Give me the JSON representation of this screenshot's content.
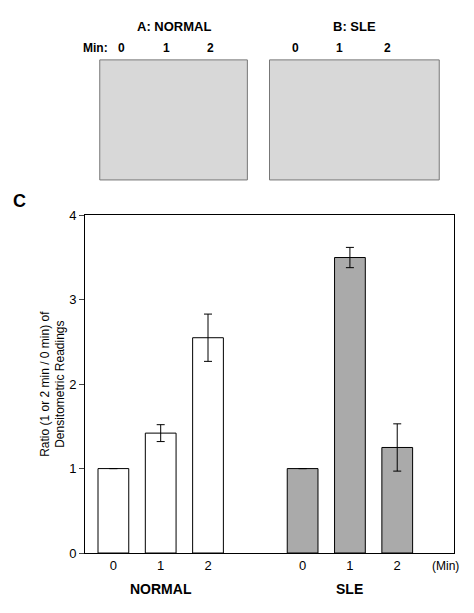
{
  "chart_data": {
    "type": "bar",
    "categories": [
      "0",
      "1",
      "2",
      null,
      "0",
      "1",
      "2"
    ],
    "values": [
      1.0,
      1.42,
      2.55,
      null,
      1.0,
      3.5,
      1.25
    ],
    "errors": [
      0.0,
      0.1,
      0.28,
      null,
      0.0,
      0.12,
      0.28
    ],
    "colors": [
      "#ffffff",
      "#ffffff",
      "#ffffff",
      null,
      "#aaaaaa",
      "#aaaaaa",
      "#aaaaaa"
    ],
    "ylabel": "Ratio (1 or 2 min / 0 min) of\nDensitometric Readings",
    "ylim": [
      0,
      4
    ],
    "yticks": [
      0,
      1,
      2,
      3,
      4
    ],
    "grid": false,
    "annotations": [
      "A: NORMAL",
      "B: SLE",
      "Min:",
      "C",
      "NORMAL",
      "SLE",
      "(Min)"
    ]
  }
}
